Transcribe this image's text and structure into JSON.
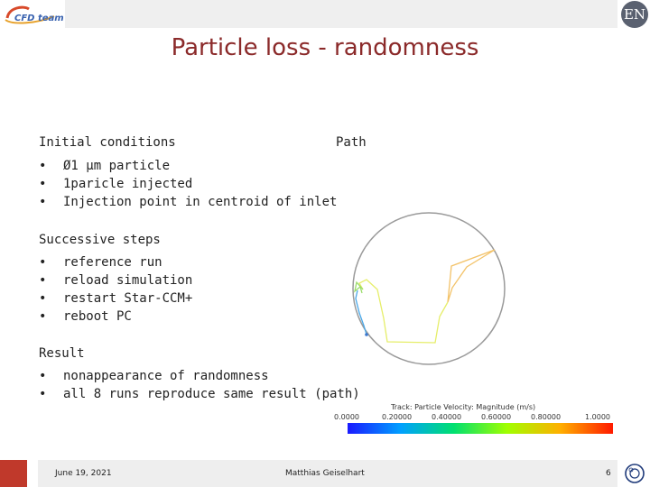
{
  "header": {
    "logo_text": "CFD team",
    "en_logo": "EN"
  },
  "slide": {
    "title": "Particle loss - randomness",
    "initial": {
      "heading": "Initial conditions",
      "items": [
        "Ø1 µm particle",
        "1paricle injected",
        "Injection point in centroid of inlet"
      ]
    },
    "steps": {
      "heading": "Successive steps",
      "items": [
        "reference run",
        "reload simulation",
        "restart Star-CCM+",
        "reboot PC"
      ]
    },
    "result": {
      "heading": "Result",
      "items": [
        "nonappearance of randomness",
        "all 8 runs reproduce same result (path)"
      ]
    },
    "path": {
      "heading": "Path",
      "legend_title": "Track: Particle Velocity: Magnitude (m/s)",
      "legend_ticks": [
        "0.0000",
        "0.20000",
        "0.40000",
        "0.60000",
        "0.80000",
        "1.0000"
      ]
    }
  },
  "footer": {
    "date": "June 19, 2021",
    "author": "Matthias Geiselhart",
    "page": "6"
  }
}
